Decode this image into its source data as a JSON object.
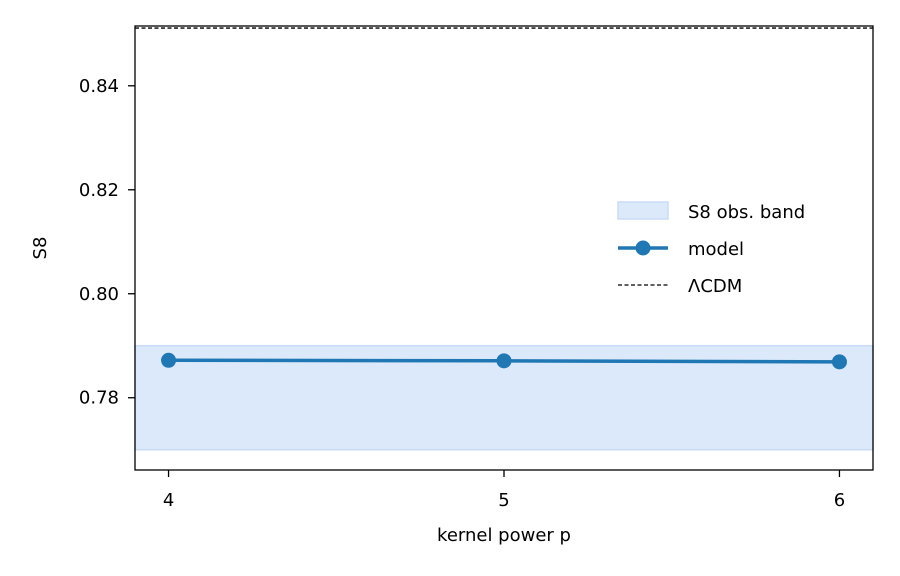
{
  "chart_data": {
    "type": "line",
    "title": "",
    "xlabel": "kernel power p",
    "ylabel": "S8",
    "xlim": [
      3.9,
      6.1
    ],
    "ylim": [
      0.7661,
      0.8515
    ],
    "x_ticks": [
      4,
      5,
      6
    ],
    "x_tick_labels": [
      "4",
      "5",
      "6"
    ],
    "y_ticks": [
      0.78,
      0.8,
      0.82,
      0.84
    ],
    "y_tick_labels": [
      "0.78",
      "0.80",
      "0.82",
      "0.84"
    ],
    "grid": false,
    "legend_position": "center-right",
    "series": [
      {
        "name": "model",
        "kind": "line-markers",
        "color": "#1f77b4",
        "x": [
          4,
          5,
          6
        ],
        "y": [
          0.7872,
          0.7871,
          0.7869
        ]
      }
    ],
    "bands": [
      {
        "name": "S8 obs. band",
        "color": "#dce9fb",
        "edge_color": "#c9dcf7",
        "y_low": 0.77,
        "y_high": 0.79
      }
    ],
    "reference_lines": [
      {
        "name": "ΛCDM",
        "color": "#000000",
        "style": "dashed",
        "y": 0.8511
      }
    ],
    "legend": [
      {
        "label": "S8 obs. band",
        "kind": "band"
      },
      {
        "label": "model",
        "kind": "line-markers"
      },
      {
        "label": "ΛCDM",
        "kind": "dashed-line"
      }
    ]
  }
}
